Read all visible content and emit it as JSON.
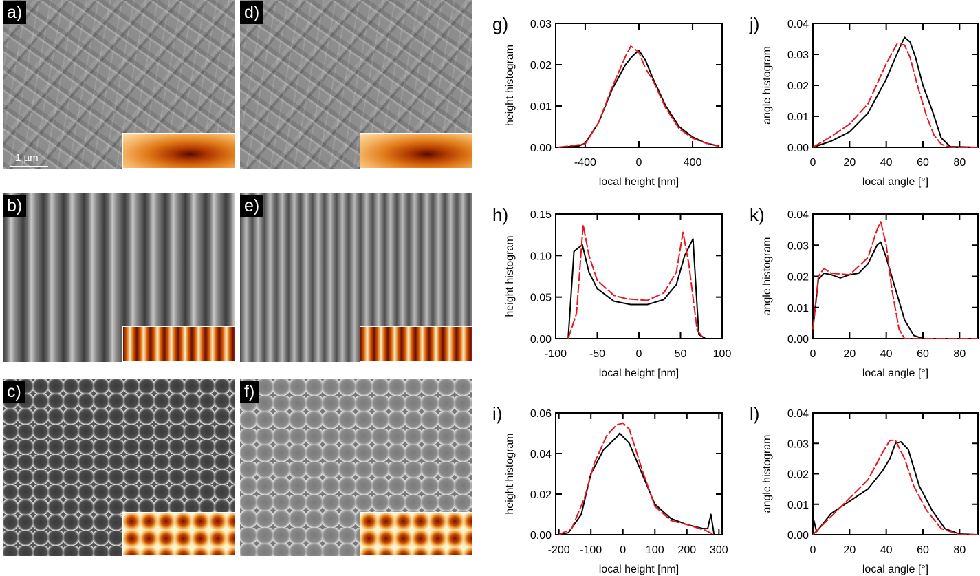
{
  "images": [
    {
      "label": "a)",
      "tex": "tex-a",
      "inset": "in-a"
    },
    {
      "label": "b)",
      "tex": "tex-b",
      "inset": "in-b"
    },
    {
      "label": "c)",
      "tex": "tex-c",
      "inset": "in-c"
    },
    {
      "label": "d)",
      "tex": "tex-a",
      "inset": "in-a"
    },
    {
      "label": "e)",
      "tex": "tex-e",
      "inset": "in-b"
    },
    {
      "label": "f)",
      "tex": "tex-f",
      "inset": "in-c"
    }
  ],
  "scale_bar": "1 µm",
  "colors": {
    "measured": "#000000",
    "model": "#e8161e"
  },
  "chart_data": [
    {
      "id": "g",
      "label": "g)",
      "type": "line",
      "xlabel": "local height [nm]",
      "ylabel": "height histogram",
      "xlim": [
        -620,
        620
      ],
      "ylim": [
        0,
        0.03
      ],
      "xticks": [
        -400,
        0,
        400
      ],
      "yticks": [
        "0.00",
        "0.01",
        "0.02",
        "0.03"
      ],
      "series": [
        {
          "name": "black",
          "x": [
            -600,
            -450,
            -400,
            -300,
            -200,
            -100,
            -50,
            0,
            50,
            100,
            200,
            300,
            400,
            500,
            600
          ],
          "y": [
            0,
            0.0003,
            0.001,
            0.006,
            0.014,
            0.02,
            0.022,
            0.0235,
            0.021,
            0.017,
            0.01,
            0.005,
            0.0025,
            0.001,
            0.0003
          ]
        },
        {
          "name": "red",
          "x": [
            -600,
            -400,
            -300,
            -200,
            -100,
            -60,
            0,
            50,
            100,
            200,
            300,
            400,
            500,
            600
          ],
          "y": [
            0,
            0.0008,
            0.006,
            0.0145,
            0.022,
            0.0245,
            0.023,
            0.019,
            0.0165,
            0.0095,
            0.0045,
            0.0022,
            0.001,
            0.0002
          ]
        }
      ]
    },
    {
      "id": "h",
      "label": "h)",
      "type": "line",
      "xlabel": "local height [nm]",
      "ylabel": "height histogram",
      "xlim": [
        -100,
        100
      ],
      "ylim": [
        0,
        0.15
      ],
      "xticks": [
        -100,
        -50,
        0,
        50,
        100
      ],
      "yticks": [
        "0.00",
        "0.05",
        "0.10",
        "0.15"
      ],
      "series": [
        {
          "name": "black",
          "x": [
            -85,
            -78,
            -68,
            -60,
            -50,
            -30,
            -10,
            10,
            30,
            45,
            55,
            65,
            72,
            80
          ],
          "y": [
            0,
            0.105,
            0.113,
            0.08,
            0.06,
            0.045,
            0.041,
            0.041,
            0.047,
            0.065,
            0.1,
            0.12,
            0.005,
            0
          ]
        },
        {
          "name": "red",
          "x": [
            -85,
            -75,
            -67,
            -60,
            -50,
            -30,
            -15,
            10,
            30,
            45,
            53,
            60,
            70,
            78
          ],
          "y": [
            0,
            0.03,
            0.137,
            0.1,
            0.07,
            0.052,
            0.048,
            0.046,
            0.055,
            0.08,
            0.128,
            0.09,
            0.01,
            0
          ]
        }
      ]
    },
    {
      "id": "i",
      "label": "i)",
      "type": "line",
      "xlabel": "local height [nm]",
      "ylabel": "height histogram",
      "xlim": [
        -210,
        310
      ],
      "ylim": [
        0,
        0.06
      ],
      "xticks": [
        -200,
        -100,
        0,
        100,
        200,
        300
      ],
      "yticks": [
        "0.00",
        "0.02",
        "0.04",
        "0.06"
      ],
      "series": [
        {
          "name": "black",
          "x": [
            -200,
            -170,
            -130,
            -100,
            -60,
            -20,
            -10,
            20,
            60,
            100,
            150,
            200,
            250,
            265,
            275,
            285
          ],
          "y": [
            0,
            0.001,
            0.01,
            0.03,
            0.042,
            0.048,
            0.05,
            0.045,
            0.03,
            0.015,
            0.008,
            0.005,
            0.003,
            0.003,
            0.01,
            0
          ]
        },
        {
          "name": "red",
          "x": [
            -200,
            -160,
            -120,
            -90,
            -50,
            -20,
            0,
            20,
            60,
            100,
            150,
            200,
            260,
            285
          ],
          "y": [
            0,
            0.003,
            0.018,
            0.035,
            0.049,
            0.054,
            0.055,
            0.052,
            0.032,
            0.014,
            0.007,
            0.005,
            0.002,
            0
          ]
        }
      ]
    },
    {
      "id": "j",
      "label": "j)",
      "type": "line",
      "xlabel": "local angle [°]",
      "ylabel": "angle histogram",
      "xlim": [
        0,
        90
      ],
      "ylim": [
        0,
        0.04
      ],
      "xticks": [
        0,
        20,
        40,
        60,
        80
      ],
      "yticks": [
        "0.00",
        "0.01",
        "0.02",
        "0.03",
        "0.04"
      ],
      "series": [
        {
          "name": "black",
          "x": [
            0,
            10,
            20,
            30,
            40,
            45,
            48,
            50,
            53,
            56,
            60,
            65,
            70,
            75,
            90
          ],
          "y": [
            0,
            0.002,
            0.005,
            0.011,
            0.022,
            0.029,
            0.033,
            0.0355,
            0.034,
            0.029,
            0.02,
            0.012,
            0.003,
            0.0002,
            0
          ]
        },
        {
          "name": "red",
          "x": [
            0,
            10,
            20,
            30,
            40,
            46,
            50,
            53,
            57,
            62,
            66,
            70,
            75,
            90
          ],
          "y": [
            0,
            0.0035,
            0.0075,
            0.014,
            0.027,
            0.0335,
            0.033,
            0.029,
            0.02,
            0.01,
            0.004,
            0.001,
            0,
            0
          ]
        }
      ]
    },
    {
      "id": "k",
      "label": "k)",
      "type": "line",
      "xlabel": "local angle [°]",
      "ylabel": "angle histogram",
      "xlim": [
        0,
        90
      ],
      "ylim": [
        0,
        0.04
      ],
      "xticks": [
        0,
        20,
        40,
        60,
        80
      ],
      "yticks": [
        "0.00",
        "0.01",
        "0.02",
        "0.03",
        "0.04"
      ],
      "series": [
        {
          "name": "black",
          "x": [
            0,
            3,
            6,
            10,
            15,
            20,
            25,
            30,
            35,
            37,
            40,
            45,
            50,
            55,
            60,
            90
          ],
          "y": [
            0.003,
            0.019,
            0.021,
            0.0205,
            0.0195,
            0.0205,
            0.021,
            0.024,
            0.03,
            0.031,
            0.026,
            0.016,
            0.006,
            0.001,
            0,
            0
          ]
        },
        {
          "name": "red",
          "x": [
            0,
            3,
            6,
            10,
            20,
            30,
            35,
            37,
            40,
            43,
            47,
            50,
            90
          ],
          "y": [
            0.003,
            0.02,
            0.0225,
            0.021,
            0.0205,
            0.026,
            0.035,
            0.0375,
            0.03,
            0.016,
            0.003,
            0,
            0
          ]
        }
      ]
    },
    {
      "id": "l",
      "label": "l)",
      "type": "line",
      "xlabel": "local angle [°]",
      "ylabel": "angle histogram",
      "xlim": [
        0,
        90
      ],
      "ylim": [
        0,
        0.04
      ],
      "xticks": [
        0,
        20,
        40,
        60,
        80
      ],
      "yticks": [
        "0.00",
        "0.01",
        "0.02",
        "0.03",
        "0.04"
      ],
      "series": [
        {
          "name": "black",
          "x": [
            0,
            2,
            10,
            20,
            30,
            38,
            42,
            45,
            48,
            52,
            58,
            65,
            72,
            80,
            90
          ],
          "y": [
            0.006,
            0.001,
            0.007,
            0.011,
            0.015,
            0.021,
            0.025,
            0.03,
            0.0305,
            0.028,
            0.016,
            0.008,
            0.002,
            0.0002,
            0
          ]
        },
        {
          "name": "red",
          "x": [
            0,
            10,
            20,
            30,
            38,
            42,
            45,
            50,
            55,
            62,
            70,
            80,
            90
          ],
          "y": [
            0,
            0.006,
            0.012,
            0.018,
            0.027,
            0.031,
            0.031,
            0.025,
            0.016,
            0.008,
            0.002,
            0,
            0
          ]
        }
      ]
    }
  ]
}
